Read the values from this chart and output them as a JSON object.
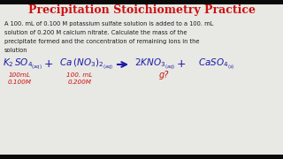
{
  "title": "Precipitation Stoichiometry Practice",
  "title_color": "#cc1111",
  "bg_color": "#e8e8e4",
  "header_bg": "#0a0a0a",
  "body_text_color": "#1a1a1a",
  "eq_color": "#1a1aaa",
  "sub_color": "#cc1111",
  "body_line1": "A 100. mL of 0.100 M potassium sulfate solution is added to a 100. mL",
  "body_line2": "solution of 0.200 M calcium nitrate. Calculate the mass of the",
  "body_line3": "precipitate formed and the concentration of remaining ions in the",
  "body_line4": "solution",
  "sub1a": "100mL",
  "sub1b": "0.100M",
  "sub2a": "100. mL",
  "sub2b": "0.200M",
  "sub3": "g?"
}
